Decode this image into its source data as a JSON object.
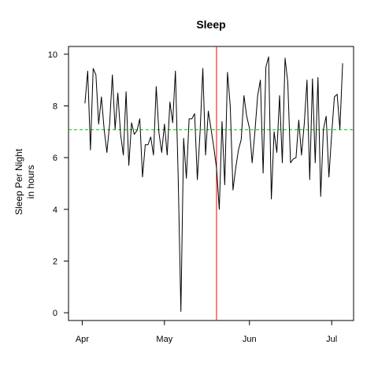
{
  "chart_data": {
    "type": "line",
    "title": "Sleep",
    "xlabel": "",
    "ylabel": [
      "Sleep Per Night",
      "in hours"
    ],
    "x_start": "2015-04-02",
    "x_ticks": [
      {
        "label": "Apr",
        "date": "2015-04-01"
      },
      {
        "label": "May",
        "date": "2015-05-01"
      },
      {
        "label": "Jun",
        "date": "2015-06-01"
      },
      {
        "label": "Jul",
        "date": "2015-07-01"
      }
    ],
    "xlim": [
      "2015-03-27",
      "2015-07-09"
    ],
    "y_ticks": [
      0,
      2,
      4,
      6,
      8,
      10
    ],
    "ylim": [
      -0.3,
      10.3
    ],
    "grid": false,
    "series": [
      {
        "values": [
          8.1,
          9.35,
          6.3,
          9.45,
          9.2,
          7.3,
          8.35,
          7.1,
          6.2,
          7.3,
          9.2,
          7.1,
          8.5,
          6.9,
          6.1,
          8.55,
          5.7,
          7.35,
          6.9,
          7.05,
          7.5,
          5.25,
          6.5,
          6.5,
          6.8,
          6.1,
          8.75,
          6.95,
          6.2,
          7.3,
          6.1,
          8.15,
          7.35,
          9.35,
          5.3,
          0.05,
          6.75,
          5.2,
          7.5,
          7.5,
          7.7,
          5.15,
          7.0,
          9.45,
          6.1,
          7.8,
          7.1,
          6.4,
          5.6,
          4.0,
          7.4,
          4.95,
          9.3,
          8.0,
          4.75,
          5.6,
          6.3,
          6.7,
          8.4,
          7.6,
          7.15,
          5.8,
          7.0,
          8.4,
          9.0,
          5.4,
          9.5,
          9.9,
          4.4,
          7.0,
          6.2,
          8.4,
          5.8,
          9.85,
          8.9,
          5.8,
          5.95,
          6.0,
          7.45,
          6.1,
          7.3,
          9.0,
          5.15,
          9.05,
          5.8,
          9.1,
          4.5,
          7.1,
          7.6,
          5.25,
          6.9,
          8.35,
          8.45,
          7.1,
          9.65
        ],
        "color": "#000000"
      }
    ],
    "reference_lines": [
      {
        "orientation": "horizontal",
        "value": 7.08,
        "color": "#00cc00",
        "style": "dashed"
      },
      {
        "orientation": "vertical",
        "date": "2015-05-20",
        "color": "#ff0000",
        "style": "solid"
      }
    ]
  }
}
